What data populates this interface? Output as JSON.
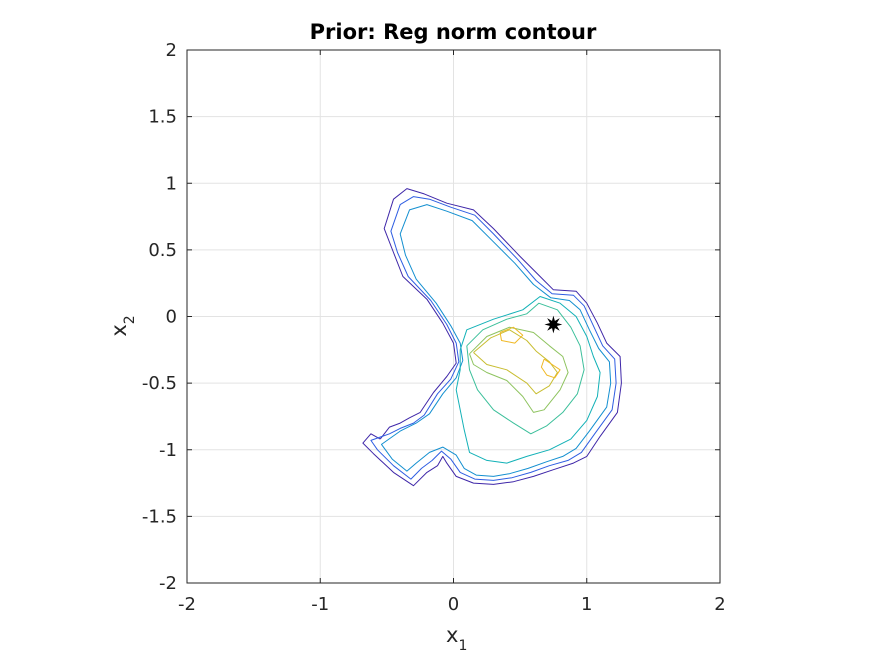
{
  "chart_data": {
    "type": "contour",
    "title": "Prior: Reg norm contour",
    "xlabel": {
      "base": "x",
      "subscript": "1"
    },
    "ylabel": {
      "base": "x",
      "subscript": "2"
    },
    "xlim": [
      -2,
      2
    ],
    "ylim": [
      -2,
      2
    ],
    "xticks": [
      -2,
      -1,
      0,
      1,
      2
    ],
    "yticks": [
      -2,
      -1.5,
      -1,
      -0.5,
      0,
      0.5,
      1,
      1.5,
      2
    ],
    "xtick_labels": [
      "-2",
      "-1",
      "0",
      "1",
      "2"
    ],
    "ytick_labels": [
      "-2",
      "-1.5",
      "-1",
      "-0.5",
      "0",
      "0.5",
      "1",
      "1.5",
      "2"
    ],
    "grid": true,
    "colormap": [
      "#3e26a8",
      "#2e5de2",
      "#138fd0",
      "#12b1b7",
      "#3bbf9a",
      "#8ec35f",
      "#c8bd30",
      "#f0b823"
    ],
    "marker": {
      "x": 0.75,
      "y": -0.06,
      "shape": "star",
      "color": "#000000"
    },
    "contours": [
      {
        "level": 1,
        "color": "#3e26a8",
        "points": [
          [
            -0.55,
            -0.92
          ],
          [
            -0.48,
            -0.83
          ],
          [
            -0.4,
            -0.8
          ],
          [
            -0.33,
            -0.76
          ],
          [
            -0.25,
            -0.72
          ],
          [
            -0.15,
            -0.57
          ],
          [
            -0.05,
            -0.45
          ],
          [
            0.02,
            -0.35
          ],
          [
            0.0,
            -0.2
          ],
          [
            -0.08,
            -0.05
          ],
          [
            -0.2,
            0.13
          ],
          [
            -0.38,
            0.3
          ],
          [
            -0.45,
            0.48
          ],
          [
            -0.52,
            0.66
          ],
          [
            -0.45,
            0.88
          ],
          [
            -0.35,
            0.96
          ],
          [
            -0.22,
            0.92
          ],
          [
            -0.05,
            0.85
          ],
          [
            0.15,
            0.8
          ],
          [
            0.3,
            0.66
          ],
          [
            0.5,
            0.45
          ],
          [
            0.65,
            0.3
          ],
          [
            0.75,
            0.2
          ],
          [
            0.92,
            0.19
          ],
          [
            1.0,
            0.1
          ],
          [
            1.08,
            -0.05
          ],
          [
            1.15,
            -0.2
          ],
          [
            1.25,
            -0.3
          ],
          [
            1.26,
            -0.5
          ],
          [
            1.23,
            -0.72
          ],
          [
            1.1,
            -0.9
          ],
          [
            1.0,
            -1.05
          ],
          [
            0.9,
            -1.1
          ],
          [
            0.75,
            -1.15
          ],
          [
            0.6,
            -1.2
          ],
          [
            0.45,
            -1.24
          ],
          [
            0.3,
            -1.26
          ],
          [
            0.15,
            -1.25
          ],
          [
            0.02,
            -1.2
          ],
          [
            -0.05,
            -1.1
          ],
          [
            -0.08,
            -1.05
          ],
          [
            -0.12,
            -1.12
          ],
          [
            -0.2,
            -1.17
          ],
          [
            -0.3,
            -1.27
          ],
          [
            -0.45,
            -1.17
          ],
          [
            -0.6,
            -1.03
          ],
          [
            -0.68,
            -0.95
          ],
          [
            -0.62,
            -0.88
          ],
          [
            -0.55,
            -0.92
          ]
        ]
      },
      {
        "level": 2,
        "color": "#2e5de2",
        "points": [
          [
            -0.48,
            -0.88
          ],
          [
            -0.4,
            -0.84
          ],
          [
            -0.3,
            -0.8
          ],
          [
            -0.22,
            -0.74
          ],
          [
            -0.12,
            -0.58
          ],
          [
            -0.02,
            -0.47
          ],
          [
            0.04,
            -0.34
          ],
          [
            0.02,
            -0.2
          ],
          [
            -0.05,
            -0.06
          ],
          [
            -0.17,
            0.12
          ],
          [
            -0.34,
            0.3
          ],
          [
            -0.42,
            0.48
          ],
          [
            -0.47,
            0.64
          ],
          [
            -0.4,
            0.84
          ],
          [
            -0.3,
            0.9
          ],
          [
            -0.18,
            0.88
          ],
          [
            -0.02,
            0.82
          ],
          [
            0.16,
            0.76
          ],
          [
            0.3,
            0.62
          ],
          [
            0.48,
            0.43
          ],
          [
            0.62,
            0.27
          ],
          [
            0.74,
            0.17
          ],
          [
            0.9,
            0.16
          ],
          [
            0.98,
            0.08
          ],
          [
            1.05,
            -0.07
          ],
          [
            1.12,
            -0.22
          ],
          [
            1.21,
            -0.32
          ],
          [
            1.22,
            -0.5
          ],
          [
            1.19,
            -0.7
          ],
          [
            1.06,
            -0.88
          ],
          [
            0.96,
            -1.02
          ],
          [
            0.86,
            -1.08
          ],
          [
            0.72,
            -1.12
          ],
          [
            0.58,
            -1.17
          ],
          [
            0.44,
            -1.21
          ],
          [
            0.3,
            -1.23
          ],
          [
            0.16,
            -1.22
          ],
          [
            0.05,
            -1.17
          ],
          [
            -0.02,
            -1.07
          ],
          [
            -0.09,
            -1.01
          ],
          [
            -0.16,
            -1.08
          ],
          [
            -0.24,
            -1.14
          ],
          [
            -0.32,
            -1.22
          ],
          [
            -0.45,
            -1.12
          ],
          [
            -0.57,
            -1.0
          ],
          [
            -0.62,
            -0.93
          ],
          [
            -0.48,
            -0.88
          ]
        ]
      },
      {
        "level": 3,
        "color": "#138fd0",
        "points": [
          [
            -0.4,
            -0.86
          ],
          [
            -0.28,
            -0.8
          ],
          [
            -0.18,
            -0.73
          ],
          [
            -0.08,
            -0.58
          ],
          [
            0.02,
            -0.46
          ],
          [
            0.07,
            -0.33
          ],
          [
            0.05,
            -0.2
          ],
          [
            -0.02,
            -0.07
          ],
          [
            -0.13,
            0.1
          ],
          [
            -0.28,
            0.28
          ],
          [
            -0.36,
            0.46
          ],
          [
            -0.4,
            0.62
          ],
          [
            -0.33,
            0.8
          ],
          [
            -0.2,
            0.84
          ],
          [
            -0.05,
            0.79
          ],
          [
            0.14,
            0.72
          ],
          [
            0.28,
            0.58
          ],
          [
            0.46,
            0.4
          ],
          [
            0.6,
            0.24
          ],
          [
            0.73,
            0.14
          ],
          [
            0.87,
            0.12
          ],
          [
            0.95,
            0.05
          ],
          [
            1.02,
            -0.1
          ],
          [
            1.09,
            -0.24
          ],
          [
            1.17,
            -0.34
          ],
          [
            1.18,
            -0.5
          ],
          [
            1.15,
            -0.68
          ],
          [
            1.02,
            -0.86
          ],
          [
            0.92,
            -0.99
          ],
          [
            0.82,
            -1.05
          ],
          [
            0.7,
            -1.09
          ],
          [
            0.56,
            -1.14
          ],
          [
            0.42,
            -1.18
          ],
          [
            0.3,
            -1.2
          ],
          [
            0.17,
            -1.19
          ],
          [
            0.08,
            -1.14
          ],
          [
            0.02,
            -1.04
          ],
          [
            -0.08,
            -0.98
          ],
          [
            -0.18,
            -1.02
          ],
          [
            -0.28,
            -1.1
          ],
          [
            -0.35,
            -1.16
          ],
          [
            -0.46,
            -1.07
          ],
          [
            -0.54,
            -0.96
          ],
          [
            -0.4,
            -0.86
          ]
        ]
      },
      {
        "level": 4,
        "color": "#12b1b7",
        "points": [
          [
            0.05,
            -0.25
          ],
          [
            0.1,
            -0.1
          ],
          [
            0.3,
            -0.02
          ],
          [
            0.52,
            0.05
          ],
          [
            0.65,
            0.15
          ],
          [
            0.8,
            0.1
          ],
          [
            0.92,
            0.0
          ],
          [
            1.0,
            -0.15
          ],
          [
            1.05,
            -0.3
          ],
          [
            1.1,
            -0.42
          ],
          [
            1.08,
            -0.6
          ],
          [
            1.0,
            -0.78
          ],
          [
            0.88,
            -0.92
          ],
          [
            0.72,
            -1.0
          ],
          [
            0.55,
            -1.05
          ],
          [
            0.4,
            -1.1
          ],
          [
            0.25,
            -1.08
          ],
          [
            0.12,
            -1.02
          ],
          [
            0.08,
            -0.85
          ],
          [
            0.05,
            -0.7
          ],
          [
            0.02,
            -0.55
          ],
          [
            0.05,
            -0.4
          ],
          [
            0.05,
            -0.25
          ]
        ]
      },
      {
        "level": 5,
        "color": "#3bbf9a",
        "points": [
          [
            0.1,
            -0.22
          ],
          [
            0.22,
            -0.1
          ],
          [
            0.4,
            -0.02
          ],
          [
            0.55,
            0.02
          ],
          [
            0.64,
            0.1
          ],
          [
            0.78,
            0.05
          ],
          [
            0.88,
            -0.08
          ],
          [
            0.95,
            -0.22
          ],
          [
            0.98,
            -0.4
          ],
          [
            0.93,
            -0.58
          ],
          [
            0.82,
            -0.72
          ],
          [
            0.7,
            -0.82
          ],
          [
            0.58,
            -0.88
          ],
          [
            0.45,
            -0.8
          ],
          [
            0.3,
            -0.7
          ],
          [
            0.18,
            -0.55
          ],
          [
            0.12,
            -0.4
          ],
          [
            0.1,
            -0.22
          ]
        ]
      },
      {
        "level": 6,
        "color": "#8ec35f",
        "points": [
          [
            0.12,
            -0.28
          ],
          [
            0.25,
            -0.15
          ],
          [
            0.42,
            -0.08
          ],
          [
            0.6,
            -0.12
          ],
          [
            0.72,
            -0.22
          ],
          [
            0.82,
            -0.3
          ],
          [
            0.86,
            -0.42
          ],
          [
            0.8,
            -0.55
          ],
          [
            0.68,
            -0.7
          ],
          [
            0.6,
            -0.72
          ],
          [
            0.52,
            -0.6
          ],
          [
            0.4,
            -0.48
          ],
          [
            0.25,
            -0.42
          ],
          [
            0.15,
            -0.36
          ],
          [
            0.12,
            -0.28
          ]
        ]
      },
      {
        "level": 7,
        "color": "#c8bd30",
        "points": [
          [
            0.15,
            -0.27
          ],
          [
            0.28,
            -0.16
          ],
          [
            0.42,
            -0.1
          ],
          [
            0.55,
            -0.18
          ],
          [
            0.62,
            -0.26
          ],
          [
            0.72,
            -0.34
          ],
          [
            0.78,
            -0.42
          ],
          [
            0.72,
            -0.52
          ],
          [
            0.62,
            -0.58
          ],
          [
            0.55,
            -0.5
          ],
          [
            0.4,
            -0.4
          ],
          [
            0.25,
            -0.36
          ],
          [
            0.15,
            -0.27
          ]
        ]
      },
      {
        "level": 8,
        "color": "#f0b823",
        "points": [
          [
            0.68,
            -0.32
          ],
          [
            0.74,
            -0.36
          ],
          [
            0.8,
            -0.4
          ],
          [
            0.76,
            -0.46
          ],
          [
            0.7,
            -0.44
          ],
          [
            0.66,
            -0.38
          ],
          [
            0.68,
            -0.32
          ]
        ]
      },
      {
        "level": 8,
        "color": "#f0b823",
        "points": [
          [
            0.35,
            -0.12
          ],
          [
            0.45,
            -0.08
          ],
          [
            0.52,
            -0.14
          ],
          [
            0.46,
            -0.2
          ],
          [
            0.36,
            -0.18
          ],
          [
            0.35,
            -0.12
          ]
        ]
      }
    ]
  }
}
